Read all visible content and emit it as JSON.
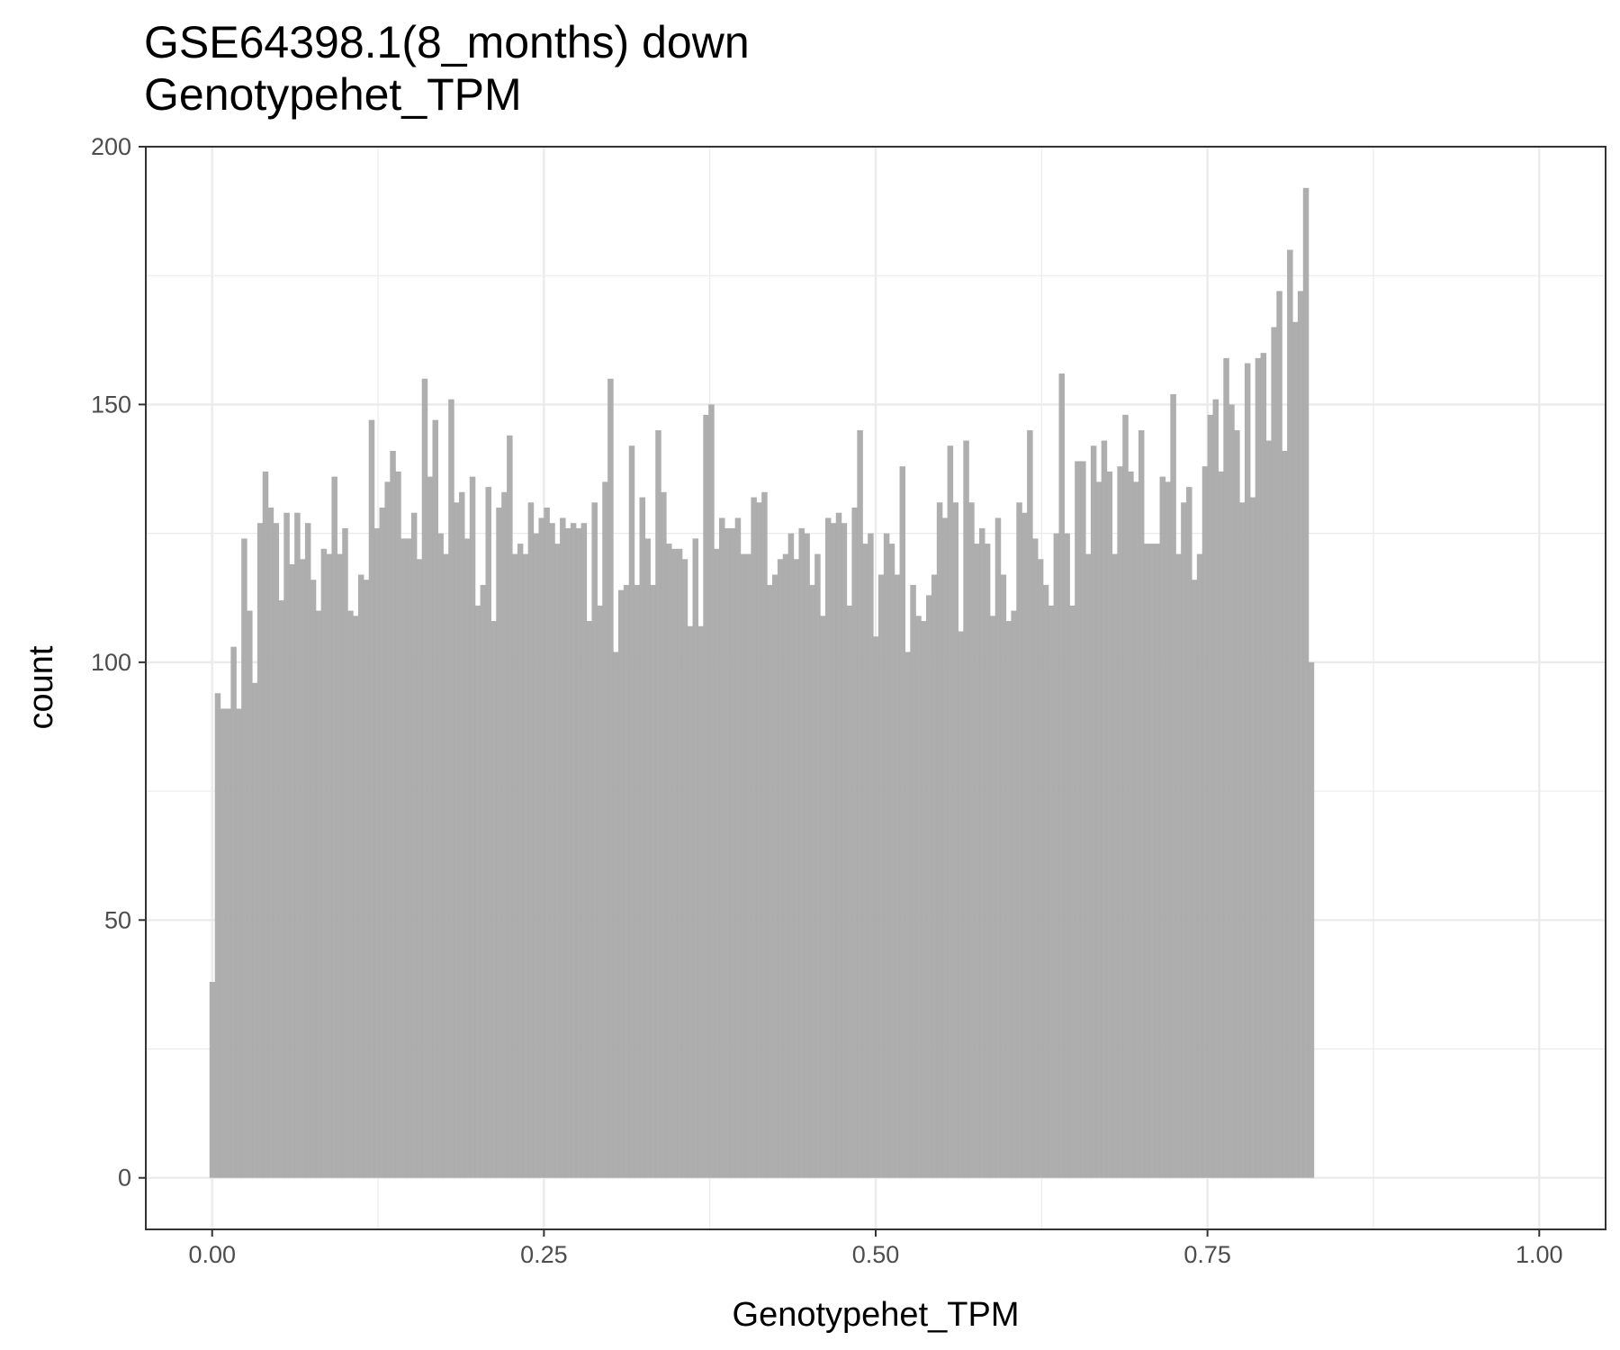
{
  "chart_data": {
    "type": "bar",
    "title": "GSE64398.1(8_months) down",
    "subtitle": "Genotypehet_TPM",
    "xlabel": "Genotypehet_TPM",
    "ylabel": "count",
    "xlim": [
      -0.05,
      1.05
    ],
    "ylim": [
      -10,
      200
    ],
    "x_ticks": [
      "0.00",
      "0.25",
      "0.50",
      "0.75",
      "1.00"
    ],
    "x_tick_values": [
      0,
      0.25,
      0.5,
      0.75,
      1.0
    ],
    "y_ticks": [
      "0",
      "50",
      "100",
      "150",
      "200"
    ],
    "y_tick_values": [
      0,
      50,
      100,
      150,
      200
    ],
    "grid": true,
    "bar_color": "#aaaaaa",
    "x_start": -0.002,
    "bin_width": 0.004,
    "values": [
      38,
      94,
      91,
      91,
      103,
      91,
      124,
      110,
      96,
      127,
      137,
      130,
      127,
      112,
      129,
      119,
      129,
      120,
      127,
      116,
      110,
      122,
      121,
      136,
      121,
      126,
      110,
      109,
      117,
      116,
      147,
      126,
      130,
      135,
      141,
      137,
      124,
      124,
      129,
      120,
      155,
      136,
      147,
      125,
      121,
      151,
      131,
      133,
      124,
      136,
      111,
      115,
      134,
      108,
      130,
      133,
      144,
      121,
      123,
      121,
      131,
      125,
      128,
      130,
      127,
      123,
      128,
      126,
      127,
      126,
      127,
      108,
      131,
      111,
      135,
      155,
      102,
      114,
      115,
      142,
      115,
      132,
      124,
      115,
      145,
      133,
      123,
      122,
      122,
      120,
      107,
      124,
      107,
      148,
      150,
      122,
      128,
      126,
      126,
      128,
      121,
      121,
      132,
      131,
      133,
      115,
      117,
      120,
      121,
      125,
      120,
      126,
      125,
      115,
      121,
      109,
      128,
      127,
      129,
      127,
      111,
      130,
      145,
      123,
      125,
      105,
      117,
      125,
      123,
      117,
      138,
      102,
      115,
      109,
      108,
      113,
      117,
      131,
      128,
      142,
      131,
      106,
      143,
      131,
      123,
      126,
      123,
      109,
      128,
      117,
      108,
      110,
      131,
      129,
      145,
      124,
      120,
      115,
      111,
      125,
      156,
      125,
      111,
      139,
      139,
      121,
      142,
      135,
      143,
      137,
      121,
      138,
      148,
      137,
      135,
      145,
      123,
      123,
      123,
      136,
      135,
      152,
      121,
      131,
      134,
      116,
      121,
      138,
      148,
      151,
      137,
      159,
      150,
      145,
      131,
      158,
      132,
      159,
      160,
      143,
      165,
      172,
      141,
      180,
      166,
      172,
      192,
      100
    ]
  }
}
